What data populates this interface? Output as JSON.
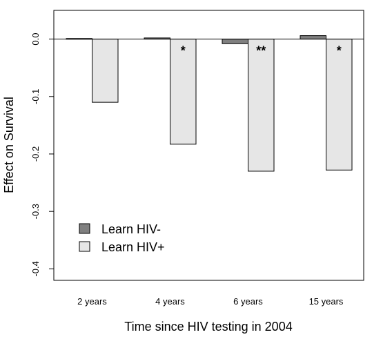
{
  "chart_data": {
    "type": "bar",
    "title": "",
    "xlabel": "Time since HIV testing in 2004",
    "ylabel": "Effect on Survival",
    "categories": [
      "2 years",
      "4 years",
      "6 years",
      "15 years"
    ],
    "ylim": [
      -0.42,
      0.05
    ],
    "yticks": [
      "-0.4",
      "-0.3",
      "-0.2",
      "-0.1",
      "0.0"
    ],
    "series": [
      {
        "name": "Learn HIV-",
        "color": "#808080",
        "values": [
          0.001,
          0.002,
          -0.008,
          0.006
        ]
      },
      {
        "name": "Learn HIV+",
        "color": "#e6e6e6",
        "values": [
          -0.11,
          -0.183,
          -0.23,
          -0.228
        ]
      }
    ],
    "significance": [
      "",
      "*",
      "**",
      "*"
    ],
    "legend_position": "bottom-left",
    "reference_line": 0,
    "grid": false
  }
}
